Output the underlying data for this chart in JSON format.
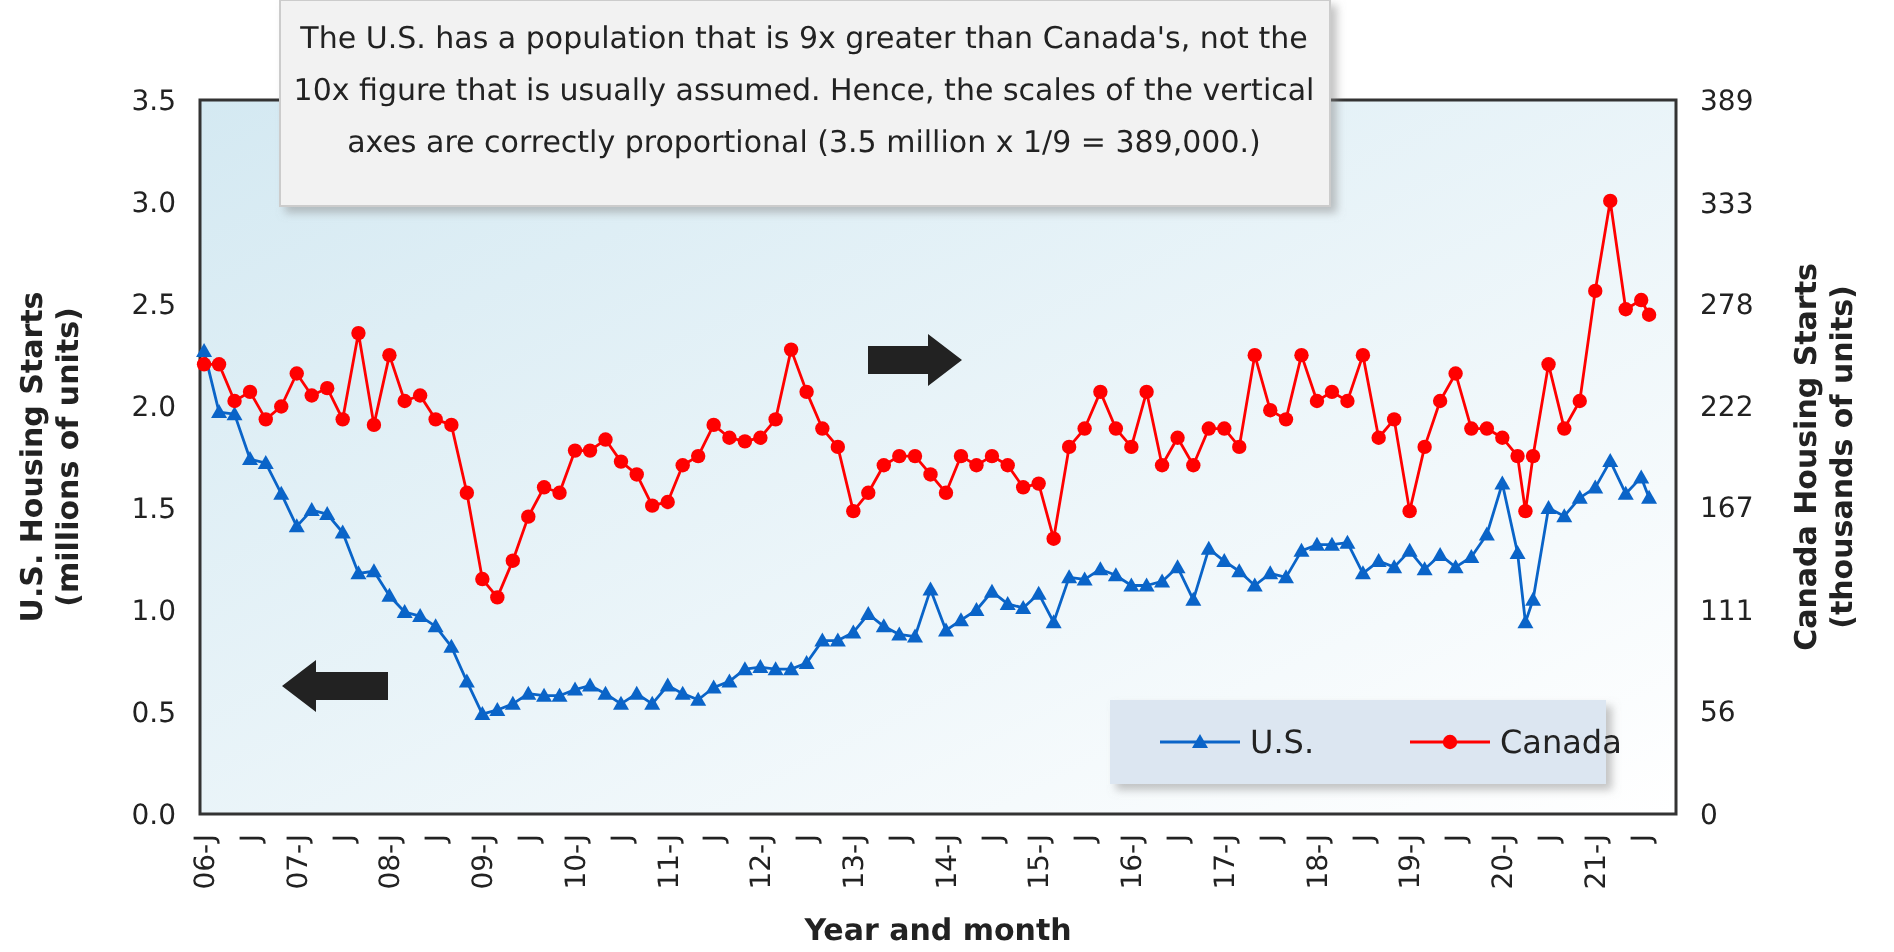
{
  "chart_data": {
    "type": "line",
    "xlabel": "Year and month",
    "ylabel": "U.S. Housing Starts\n(millions of units)",
    "y2label": "Canada Housing Starts\n(thousands of units)",
    "annotations": [
      "The U.S. has a population that is 9x greater than Canada's, not the 10x figure that is usually assumed. Hence, the scales of the vertical axes are correctly proportional (3.5 million x 1/9 = 389,000.)"
    ],
    "xlim": [
      "2005-12-16",
      "2021-11-15"
    ],
    "xticks": [
      {
        "value": "2006-01",
        "label": "06-J"
      },
      {
        "value": "2006-07",
        "label": "J"
      },
      {
        "value": "2007-01",
        "label": "07-J"
      },
      {
        "value": "2007-07",
        "label": "J"
      },
      {
        "value": "2008-01",
        "label": "08-J"
      },
      {
        "value": "2008-07",
        "label": "J"
      },
      {
        "value": "2009-01",
        "label": "09-J"
      },
      {
        "value": "2009-07",
        "label": "J"
      },
      {
        "value": "2010-01",
        "label": "10-J"
      },
      {
        "value": "2010-07",
        "label": "J"
      },
      {
        "value": "2011-01",
        "label": "11-J"
      },
      {
        "value": "2011-07",
        "label": "J"
      },
      {
        "value": "2012-01",
        "label": "12-J"
      },
      {
        "value": "2012-07",
        "label": "J"
      },
      {
        "value": "2013-01",
        "label": "13-J"
      },
      {
        "value": "2013-07",
        "label": "J"
      },
      {
        "value": "2014-01",
        "label": "14-J"
      },
      {
        "value": "2014-07",
        "label": "J"
      },
      {
        "value": "2015-01",
        "label": "15-J"
      },
      {
        "value": "2015-07",
        "label": "J"
      },
      {
        "value": "2016-01",
        "label": "16-J"
      },
      {
        "value": "2016-07",
        "label": "J"
      },
      {
        "value": "2017-01",
        "label": "17-J"
      },
      {
        "value": "2017-07",
        "label": "J"
      },
      {
        "value": "2018-01",
        "label": "18-J"
      },
      {
        "value": "2018-07",
        "label": "J"
      },
      {
        "value": "2019-01",
        "label": "19-J"
      },
      {
        "value": "2019-07",
        "label": "J"
      },
      {
        "value": "2020-01",
        "label": "20-J"
      },
      {
        "value": "2020-07",
        "label": "J"
      },
      {
        "value": "2021-01",
        "label": "21-J"
      },
      {
        "value": "2021-07",
        "label": "J"
      }
    ],
    "ylim": [
      0,
      3.5
    ],
    "yticks": [
      {
        "value": 0,
        "label": "0.0"
      },
      0.5,
      {
        "value": 1,
        "label": "1.0"
      },
      1.5,
      {
        "value": 2,
        "label": "2.0"
      },
      2.5,
      {
        "value": 3,
        "label": "3.0"
      },
      3.5
    ],
    "y2lim": [
      0,
      389
    ],
    "y2ticks": [
      0,
      56,
      111,
      167,
      222,
      278,
      333,
      389
    ],
    "legend": "bottom right",
    "series": [
      {
        "name": "U.S.",
        "color": "#0a64c8",
        "marker": "triangle",
        "x": [
          "2006-01",
          "2006-03",
          "2006-05",
          "2006-07",
          "2006-09",
          "2006-11",
          "2007-01",
          "2007-03",
          "2007-05",
          "2007-07",
          "2007-09",
          "2007-11",
          "2008-01",
          "2008-03",
          "2008-05",
          "2008-07",
          "2008-09",
          "2008-11",
          "2009-01",
          "2009-03",
          "2009-05",
          "2009-07",
          "2009-09",
          "2009-11",
          "2010-01",
          "2010-03",
          "2010-05",
          "2010-07",
          "2010-09",
          "2010-11",
          "2011-01",
          "2011-03",
          "2011-05",
          "2011-07",
          "2011-09",
          "2011-11",
          "2012-01",
          "2012-03",
          "2012-05",
          "2012-07",
          "2012-09",
          "2012-11",
          "2013-01",
          "2013-03",
          "2013-05",
          "2013-07",
          "2013-09",
          "2013-11",
          "2014-01",
          "2014-03",
          "2014-05",
          "2014-07",
          "2014-09",
          "2014-11",
          "2015-01",
          "2015-03",
          "2015-05",
          "2015-07",
          "2015-09",
          "2015-11",
          "2016-01",
          "2016-03",
          "2016-05",
          "2016-07",
          "2016-09",
          "2016-11",
          "2017-01",
          "2017-03",
          "2017-05",
          "2017-07",
          "2017-09",
          "2017-11",
          "2018-01",
          "2018-03",
          "2018-05",
          "2018-07",
          "2018-09",
          "2018-11",
          "2019-01",
          "2019-03",
          "2019-05",
          "2019-07",
          "2019-09",
          "2019-11",
          "2020-01",
          "2020-03",
          "2020-04",
          "2020-05",
          "2020-07",
          "2020-09",
          "2020-11",
          "2021-01",
          "2021-03",
          "2021-05",
          "2021-07",
          "2021-08"
        ],
        "values": [
          2.27,
          1.97,
          1.96,
          1.74,
          1.72,
          1.57,
          1.41,
          1.49,
          1.47,
          1.38,
          1.18,
          1.19,
          1.07,
          0.99,
          0.97,
          0.92,
          0.82,
          0.65,
          0.49,
          0.51,
          0.54,
          0.59,
          0.58,
          0.58,
          0.61,
          0.63,
          0.59,
          0.54,
          0.59,
          0.54,
          0.63,
          0.59,
          0.56,
          0.62,
          0.65,
          0.71,
          0.72,
          0.71,
          0.71,
          0.74,
          0.85,
          0.85,
          0.89,
          0.98,
          0.92,
          0.88,
          0.87,
          1.1,
          0.9,
          0.95,
          1.0,
          1.09,
          1.03,
          1.01,
          1.08,
          0.94,
          1.16,
          1.15,
          1.2,
          1.17,
          1.12,
          1.12,
          1.14,
          1.21,
          1.05,
          1.3,
          1.24,
          1.19,
          1.12,
          1.18,
          1.16,
          1.29,
          1.32,
          1.32,
          1.33,
          1.18,
          1.24,
          1.21,
          1.29,
          1.2,
          1.27,
          1.21,
          1.26,
          1.37,
          1.62,
          1.28,
          0.94,
          1.05,
          1.5,
          1.46,
          1.55,
          1.6,
          1.73,
          1.57,
          1.65,
          1.55
        ]
      },
      {
        "name": "Canada",
        "color": "#ff0000",
        "marker": "circle",
        "axis": "y2",
        "x": [
          "2006-01",
          "2006-03",
          "2006-05",
          "2006-07",
          "2006-09",
          "2006-11",
          "2007-01",
          "2007-03",
          "2007-05",
          "2007-07",
          "2007-09",
          "2007-11",
          "2008-01",
          "2008-03",
          "2008-05",
          "2008-07",
          "2008-09",
          "2008-11",
          "2009-01",
          "2009-03",
          "2009-05",
          "2009-07",
          "2009-09",
          "2009-11",
          "2010-01",
          "2010-03",
          "2010-05",
          "2010-07",
          "2010-09",
          "2010-11",
          "2011-01",
          "2011-03",
          "2011-05",
          "2011-07",
          "2011-09",
          "2011-11",
          "2012-01",
          "2012-03",
          "2012-05",
          "2012-07",
          "2012-09",
          "2012-11",
          "2013-01",
          "2013-03",
          "2013-05",
          "2013-07",
          "2013-09",
          "2013-11",
          "2014-01",
          "2014-03",
          "2014-05",
          "2014-07",
          "2014-09",
          "2014-11",
          "2015-01",
          "2015-03",
          "2015-05",
          "2015-07",
          "2015-09",
          "2015-11",
          "2016-01",
          "2016-03",
          "2016-05",
          "2016-07",
          "2016-09",
          "2016-11",
          "2017-01",
          "2017-03",
          "2017-05",
          "2017-07",
          "2017-09",
          "2017-11",
          "2018-01",
          "2018-03",
          "2018-05",
          "2018-07",
          "2018-09",
          "2018-11",
          "2019-01",
          "2019-03",
          "2019-05",
          "2019-07",
          "2019-09",
          "2019-11",
          "2020-01",
          "2020-03",
          "2020-04",
          "2020-05",
          "2020-07",
          "2020-09",
          "2020-11",
          "2021-01",
          "2021-03",
          "2021-05",
          "2021-07",
          "2021-08"
        ],
        "values": [
          245,
          245,
          225,
          230,
          215,
          222,
          240,
          228,
          232,
          215,
          262,
          212,
          250,
          225,
          228,
          215,
          212,
          175,
          128,
          118,
          138,
          162,
          178,
          175,
          198,
          198,
          204,
          192,
          185,
          168,
          170,
          190,
          195,
          212,
          205,
          203,
          205,
          215,
          253,
          230,
          210,
          200,
          165,
          175,
          190,
          195,
          195,
          185,
          175,
          195,
          190,
          195,
          190,
          178,
          180,
          150,
          200,
          210,
          230,
          210,
          200,
          230,
          190,
          205,
          190,
          210,
          210,
          200,
          250,
          220,
          215,
          250,
          225,
          230,
          225,
          250,
          205,
          215,
          165,
          200,
          225,
          240,
          210,
          210,
          205,
          195,
          165,
          195,
          245,
          210,
          225,
          285,
          334,
          275,
          280,
          272
        ]
      }
    ]
  }
}
